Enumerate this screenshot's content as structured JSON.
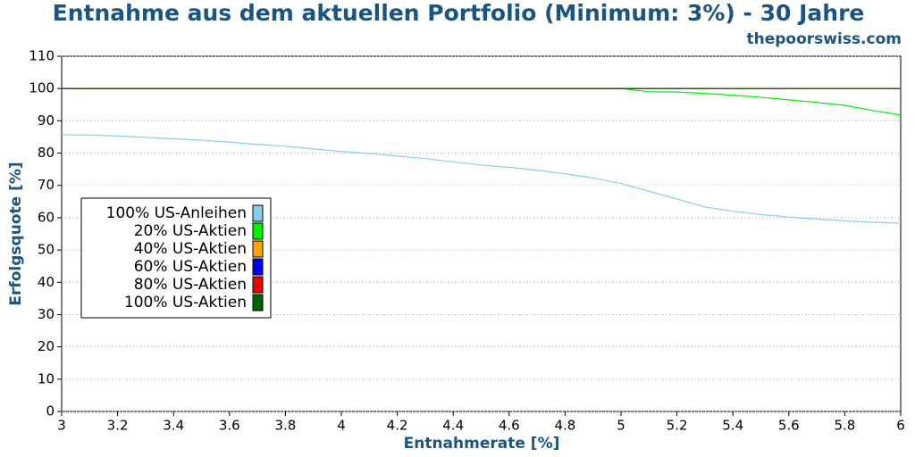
{
  "chart_data": {
    "type": "line",
    "title": "Entnahme aus dem aktuellen Portfolio (Minimum: 3%) - 30 Jahre",
    "subtitle": "thepoorswiss.com",
    "x_label": "Entnahmerate [%]",
    "y_label": "Erfolgsquote [%]",
    "x": [
      3,
      3.1,
      3.2,
      3.3,
      3.4,
      3.5,
      3.6,
      3.7,
      3.8,
      3.9,
      4,
      4.1,
      4.2,
      4.3,
      4.4,
      4.5,
      4.6,
      4.7,
      4.8,
      4.9,
      5,
      5.1,
      5.2,
      5.3,
      5.4,
      5.5,
      5.6,
      5.7,
      5.8,
      5.9,
      6
    ],
    "series": [
      {
        "name": "100% US-Anleihen",
        "color": "#87ceeb",
        "values": [
          85.7,
          85.6,
          85.3,
          84.9,
          84.4,
          84.0,
          83.4,
          82.7,
          82.1,
          81.3,
          80.5,
          79.9,
          79.1,
          78.3,
          77.3,
          76.3,
          75.6,
          74.7,
          73.6,
          72.3,
          70.6,
          68.2,
          65.8,
          63.3,
          62.0,
          61.0,
          60.2,
          59.6,
          59.0,
          58.6,
          58.3
        ]
      },
      {
        "name": "20% US-Aktien",
        "color": "#00ee00",
        "values": [
          100,
          100,
          100,
          100,
          100,
          100,
          100,
          100,
          100,
          100,
          100,
          100,
          100,
          100,
          100,
          100,
          100,
          100,
          100,
          100,
          100,
          99.0,
          98.9,
          98.5,
          97.9,
          97.3,
          96.5,
          95.7,
          94.8,
          93.2,
          91.8
        ]
      },
      {
        "name": "40% US-Aktien",
        "color": "#ffa500",
        "values": [
          100,
          100,
          100,
          100,
          100,
          100,
          100,
          100,
          100,
          100,
          100,
          100,
          100,
          100,
          100,
          100,
          100,
          100,
          100,
          100,
          100,
          100,
          100,
          100,
          100,
          100,
          100,
          100,
          100,
          100,
          100
        ]
      },
      {
        "name": "60% US-Aktien",
        "color": "#0000ee",
        "values": [
          100,
          100,
          100,
          100,
          100,
          100,
          100,
          100,
          100,
          100,
          100,
          100,
          100,
          100,
          100,
          100,
          100,
          100,
          100,
          100,
          100,
          100,
          100,
          100,
          100,
          100,
          100,
          100,
          100,
          100,
          100
        ]
      },
      {
        "name": "80% US-Aktien",
        "color": "#ee0000",
        "values": [
          100,
          100,
          100,
          100,
          100,
          100,
          100,
          100,
          100,
          100,
          100,
          100,
          100,
          100,
          100,
          100,
          100,
          100,
          100,
          100,
          100,
          100,
          100,
          100,
          100,
          100,
          100,
          100,
          100,
          100,
          100
        ]
      },
      {
        "name": "100% US-Aktien",
        "color": "#006400",
        "values": [
          100,
          100,
          100,
          100,
          100,
          100,
          100,
          100,
          100,
          100,
          100,
          100,
          100,
          100,
          100,
          100,
          100,
          100,
          100,
          100,
          100,
          100,
          100,
          100,
          100,
          100,
          100,
          100,
          100,
          100,
          100
        ]
      }
    ],
    "xlim": [
      3,
      6
    ],
    "xticks": [
      3,
      3.2,
      3.4,
      3.6,
      3.8,
      4,
      4.2,
      4.4,
      4.6,
      4.8,
      5,
      5.2,
      5.4,
      5.6,
      5.8,
      6
    ],
    "ylim": [
      0,
      110
    ],
    "yticks": [
      0,
      10,
      20,
      30,
      40,
      50,
      60,
      70,
      80,
      90,
      100,
      110
    ],
    "grid": true,
    "legend": "left"
  }
}
